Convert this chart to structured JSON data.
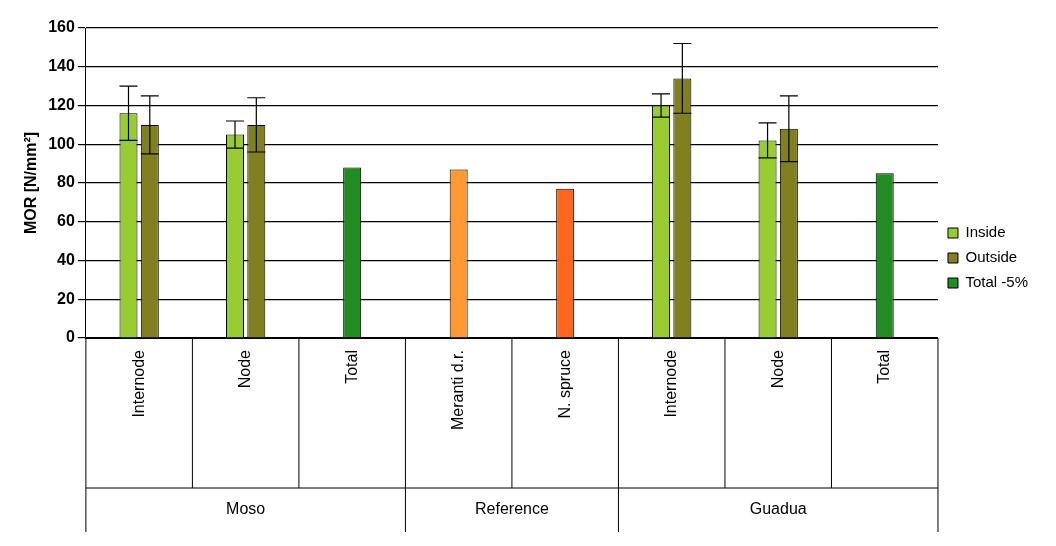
{
  "chart_data": {
    "type": "bar",
    "ylabel": "MOR [N/mm²]",
    "categories": [
      "Internode",
      "Node",
      "Total",
      "Meranti d.r.",
      "N. spruce",
      "Internode",
      "Node",
      "Total"
    ],
    "series": [
      {
        "name": "Inside",
        "color": "#99cc33",
        "values": [
          116,
          105,
          null,
          null,
          null,
          120,
          102,
          null
        ],
        "errors": [
          14,
          7,
          null,
          null,
          null,
          6,
          9,
          null
        ]
      },
      {
        "name": "Outside",
        "color": "#808020",
        "values": [
          110,
          110,
          null,
          null,
          null,
          134,
          108,
          null
        ],
        "errors": [
          15,
          14,
          null,
          null,
          null,
          18,
          17,
          null
        ]
      },
      {
        "name": "Total -5%",
        "color": "#228b22",
        "colors": [
          "#228b22",
          "#228b22",
          "#228b22",
          "#ff9933",
          "#ff6620",
          "#228b22",
          "#228b22",
          "#228b22"
        ],
        "values": [
          null,
          null,
          88,
          87,
          77,
          null,
          null,
          85
        ]
      }
    ],
    "annotations": [
      "Moso",
      "Reference",
      "Guadua"
    ],
    "ylim": [
      0,
      160
    ],
    "yticks": [
      0,
      20,
      40,
      60,
      80,
      100,
      120,
      140,
      160
    ],
    "grid": "y",
    "legend": "right"
  }
}
